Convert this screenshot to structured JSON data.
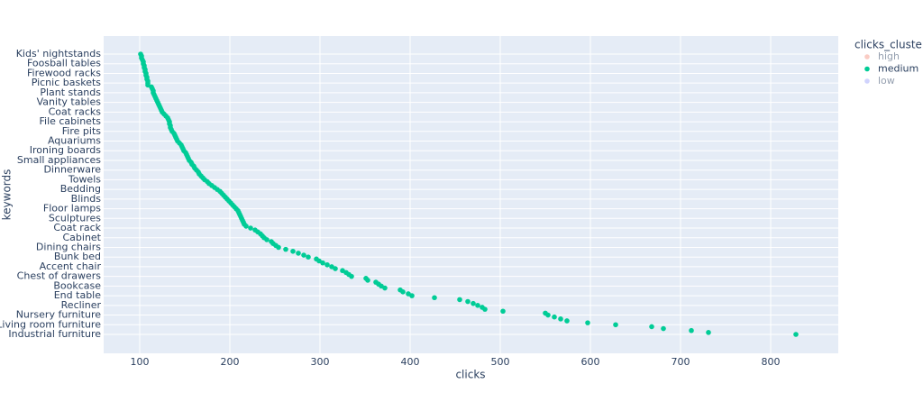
{
  "chart_data": {
    "type": "scatter",
    "xlabel": "clicks",
    "ylabel": "keywords",
    "xlim": [
      60,
      875
    ],
    "xticks": [
      100,
      200,
      300,
      400,
      500,
      600,
      700,
      800
    ],
    "grid": true,
    "categories": [
      "Industrial furniture",
      null,
      null,
      null,
      null,
      "Living room furniture",
      null,
      null,
      null,
      null,
      "Nursery furniture",
      null,
      null,
      null,
      null,
      "Recliner",
      null,
      null,
      null,
      null,
      "End table",
      null,
      null,
      null,
      null,
      "Bookcase",
      null,
      null,
      null,
      null,
      "Chest of drawers",
      null,
      null,
      null,
      null,
      "Accent chair",
      null,
      null,
      null,
      null,
      "Bunk bed",
      null,
      null,
      null,
      null,
      "Dining chairs",
      null,
      null,
      null,
      null,
      "Cabinet",
      null,
      null,
      null,
      null,
      "Coat rack",
      null,
      null,
      null,
      null,
      "Sculptures",
      null,
      null,
      null,
      null,
      "Floor lamps",
      null,
      null,
      null,
      null,
      "Blinds",
      null,
      null,
      null,
      null,
      "Bedding",
      null,
      null,
      null,
      null,
      "Towels",
      null,
      null,
      null,
      null,
      "Dinnerware",
      null,
      null,
      null,
      null,
      "Small appliances",
      null,
      null,
      null,
      null,
      "Ironing boards",
      null,
      null,
      null,
      null,
      "Aquariums",
      null,
      null,
      null,
      null,
      "Fire pits",
      null,
      null,
      null,
      null,
      "File cabinets",
      null,
      null,
      null,
      null,
      "Coat racks",
      null,
      null,
      null,
      null,
      "Vanity tables",
      null,
      null,
      null,
      null,
      "Plant stands",
      null,
      null,
      null,
      null,
      "Picnic baskets",
      null,
      null,
      null,
      null,
      "Firewood racks",
      null,
      null,
      null,
      null,
      "Foosball tables",
      null,
      null,
      null,
      null,
      "Kids' nightstands"
    ],
    "legend_title": "clicks_cluster",
    "series": [
      {
        "name": "high",
        "color": "#ef553b",
        "visible": false
      },
      {
        "name": "medium",
        "color": "#00cc96",
        "visible": true,
        "values": [
          828,
          731,
          712,
          681,
          668,
          628,
          597,
          574,
          567,
          560,
          553,
          550,
          503,
          483,
          480,
          475,
          470,
          464,
          455,
          427,
          402,
          398,
          392,
          389,
          372,
          368,
          365,
          362,
          353,
          351,
          335,
          332,
          329,
          325,
          317,
          313,
          308,
          303,
          299,
          296,
          287,
          282,
          276,
          270,
          262,
          254,
          251,
          248,
          246,
          241,
          238,
          236,
          234,
          231,
          228,
          223,
          218,
          216,
          215,
          214,
          213,
          212,
          211,
          210,
          209,
          207,
          205,
          203,
          201,
          199,
          197,
          195,
          193,
          191,
          189,
          186,
          183,
          180,
          177,
          175,
          172,
          170,
          168,
          166,
          165,
          163,
          161,
          160,
          158,
          157,
          155,
          154,
          153,
          152,
          151,
          149,
          148,
          147,
          146,
          144,
          142,
          141,
          140,
          139,
          138,
          136,
          135,
          134,
          134,
          133,
          133,
          132,
          131,
          129,
          127,
          125,
          124,
          123,
          122,
          121,
          120,
          119,
          118,
          117,
          116,
          115,
          115,
          114,
          113,
          109,
          109,
          109,
          108,
          108,
          107,
          107,
          106,
          106,
          105,
          105,
          104,
          104,
          103,
          102,
          102,
          101
        ]
      },
      {
        "name": "low",
        "color": "#636efa",
        "visible": false
      }
    ]
  }
}
